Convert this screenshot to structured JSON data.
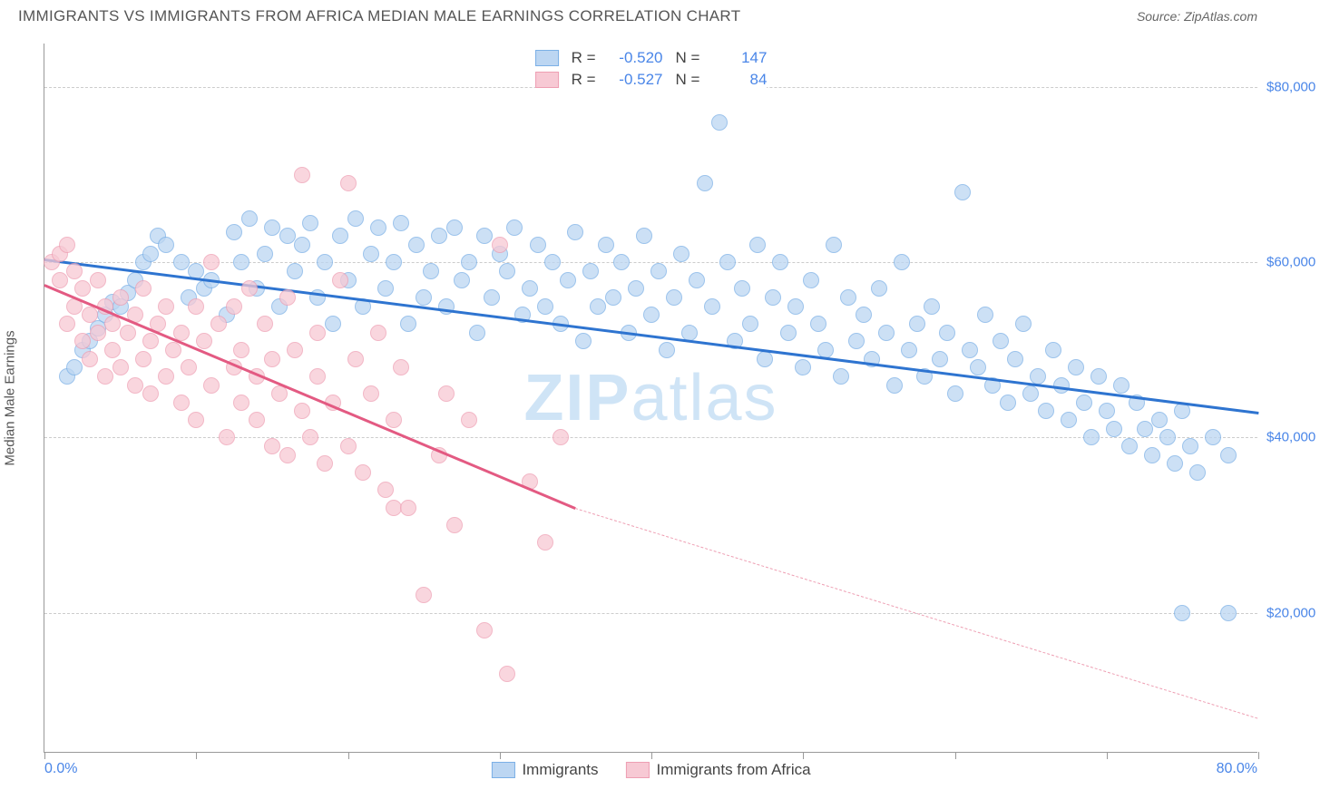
{
  "title": "IMMIGRANTS VS IMMIGRANTS FROM AFRICA MEDIAN MALE EARNINGS CORRELATION CHART",
  "source": "Source: ZipAtlas.com",
  "watermark": {
    "part1": "ZIP",
    "part2": "atlas",
    "color": "#cfe4f6"
  },
  "y_axis": {
    "label": "Median Male Earnings",
    "min": 4000,
    "max": 85000,
    "ticks": [
      20000,
      40000,
      60000,
      80000
    ],
    "tick_labels": [
      "$20,000",
      "$40,000",
      "$60,000",
      "$80,000"
    ],
    "label_color": "#4a86e8"
  },
  "x_axis": {
    "min": 0,
    "max": 80,
    "tick_positions": [
      0,
      10,
      20,
      30,
      40,
      50,
      60,
      70,
      80
    ],
    "min_label": "0.0%",
    "max_label": "80.0%",
    "label_color": "#4a86e8"
  },
  "series": [
    {
      "name": "Immigrants",
      "color_fill": "#bcd6f2",
      "color_stroke": "#7bb0e6",
      "trend_color": "#2e74d0",
      "R": "-0.520",
      "N": "147",
      "trend": {
        "x1": 0,
        "y1": 60500,
        "x2": 80,
        "y2": 43000
      },
      "dot_radius": 9,
      "points": [
        [
          1.5,
          47000
        ],
        [
          2,
          48000
        ],
        [
          2.5,
          50000
        ],
        [
          3,
          51000
        ],
        [
          3.5,
          52500
        ],
        [
          4,
          54000
        ],
        [
          4.5,
          55500
        ],
        [
          5,
          55000
        ],
        [
          5.5,
          56500
        ],
        [
          6,
          58000
        ],
        [
          6.5,
          60000
        ],
        [
          7,
          61000
        ],
        [
          7.5,
          63000
        ],
        [
          8,
          62000
        ],
        [
          9,
          60000
        ],
        [
          9.5,
          56000
        ],
        [
          10,
          59000
        ],
        [
          10.5,
          57000
        ],
        [
          11,
          58000
        ],
        [
          12,
          54000
        ],
        [
          12.5,
          63500
        ],
        [
          13,
          60000
        ],
        [
          13.5,
          65000
        ],
        [
          14,
          57000
        ],
        [
          14.5,
          61000
        ],
        [
          15,
          64000
        ],
        [
          15.5,
          55000
        ],
        [
          16,
          63000
        ],
        [
          16.5,
          59000
        ],
        [
          17,
          62000
        ],
        [
          17.5,
          64500
        ],
        [
          18,
          56000
        ],
        [
          18.5,
          60000
        ],
        [
          19,
          53000
        ],
        [
          19.5,
          63000
        ],
        [
          20,
          58000
        ],
        [
          20.5,
          65000
        ],
        [
          21,
          55000
        ],
        [
          21.5,
          61000
        ],
        [
          22,
          64000
        ],
        [
          22.5,
          57000
        ],
        [
          23,
          60000
        ],
        [
          23.5,
          64500
        ],
        [
          24,
          53000
        ],
        [
          24.5,
          62000
        ],
        [
          25,
          56000
        ],
        [
          25.5,
          59000
        ],
        [
          26,
          63000
        ],
        [
          26.5,
          55000
        ],
        [
          27,
          64000
        ],
        [
          27.5,
          58000
        ],
        [
          28,
          60000
        ],
        [
          28.5,
          52000
        ],
        [
          29,
          63000
        ],
        [
          29.5,
          56000
        ],
        [
          30,
          61000
        ],
        [
          30.5,
          59000
        ],
        [
          31,
          64000
        ],
        [
          31.5,
          54000
        ],
        [
          32,
          57000
        ],
        [
          32.5,
          62000
        ],
        [
          33,
          55000
        ],
        [
          33.5,
          60000
        ],
        [
          34,
          53000
        ],
        [
          34.5,
          58000
        ],
        [
          35,
          63500
        ],
        [
          35.5,
          51000
        ],
        [
          36,
          59000
        ],
        [
          36.5,
          55000
        ],
        [
          37,
          62000
        ],
        [
          37.5,
          56000
        ],
        [
          38,
          60000
        ],
        [
          38.5,
          52000
        ],
        [
          39,
          57000
        ],
        [
          39.5,
          63000
        ],
        [
          40,
          54000
        ],
        [
          40.5,
          59000
        ],
        [
          41,
          50000
        ],
        [
          41.5,
          56000
        ],
        [
          42,
          61000
        ],
        [
          42.5,
          52000
        ],
        [
          43,
          58000
        ],
        [
          43.5,
          69000
        ],
        [
          44,
          55000
        ],
        [
          44.5,
          76000
        ],
        [
          45,
          60000
        ],
        [
          45.5,
          51000
        ],
        [
          46,
          57000
        ],
        [
          46.5,
          53000
        ],
        [
          47,
          62000
        ],
        [
          47.5,
          49000
        ],
        [
          48,
          56000
        ],
        [
          48.5,
          60000
        ],
        [
          49,
          52000
        ],
        [
          49.5,
          55000
        ],
        [
          50,
          48000
        ],
        [
          50.5,
          58000
        ],
        [
          51,
          53000
        ],
        [
          51.5,
          50000
        ],
        [
          52,
          62000
        ],
        [
          52.5,
          47000
        ],
        [
          53,
          56000
        ],
        [
          53.5,
          51000
        ],
        [
          54,
          54000
        ],
        [
          54.5,
          49000
        ],
        [
          55,
          57000
        ],
        [
          55.5,
          52000
        ],
        [
          56,
          46000
        ],
        [
          56.5,
          60000
        ],
        [
          57,
          50000
        ],
        [
          57.5,
          53000
        ],
        [
          58,
          47000
        ],
        [
          58.5,
          55000
        ],
        [
          59,
          49000
        ],
        [
          59.5,
          52000
        ],
        [
          60,
          45000
        ],
        [
          60.5,
          68000
        ],
        [
          61,
          50000
        ],
        [
          61.5,
          48000
        ],
        [
          62,
          54000
        ],
        [
          62.5,
          46000
        ],
        [
          63,
          51000
        ],
        [
          63.5,
          44000
        ],
        [
          64,
          49000
        ],
        [
          64.5,
          53000
        ],
        [
          65,
          45000
        ],
        [
          65.5,
          47000
        ],
        [
          66,
          43000
        ],
        [
          66.5,
          50000
        ],
        [
          67,
          46000
        ],
        [
          67.5,
          42000
        ],
        [
          68,
          48000
        ],
        [
          68.5,
          44000
        ],
        [
          69,
          40000
        ],
        [
          69.5,
          47000
        ],
        [
          70,
          43000
        ],
        [
          70.5,
          41000
        ],
        [
          71,
          46000
        ],
        [
          71.5,
          39000
        ],
        [
          72,
          44000
        ],
        [
          72.5,
          41000
        ],
        [
          73,
          38000
        ],
        [
          73.5,
          42000
        ],
        [
          74,
          40000
        ],
        [
          74.5,
          37000
        ],
        [
          75,
          43000
        ],
        [
          75.5,
          39000
        ],
        [
          75,
          20000
        ],
        [
          78,
          20000
        ],
        [
          76,
          36000
        ],
        [
          77,
          40000
        ],
        [
          78,
          38000
        ]
      ]
    },
    {
      "name": "Immigrants from Africa",
      "color_fill": "#f7c9d4",
      "color_stroke": "#ee9fb3",
      "trend_color": "#e35a82",
      "R": "-0.527",
      "N": "84",
      "trend": {
        "x1": 0,
        "y1": 57500,
        "x2": 35,
        "y2": 32000
      },
      "trend_dashed": {
        "x1": 35,
        "y1": 32000,
        "x2": 80,
        "y2": 8000
      },
      "dot_radius": 9,
      "points": [
        [
          0.5,
          60000
        ],
        [
          1,
          61000
        ],
        [
          1,
          58000
        ],
        [
          1.5,
          53000
        ],
        [
          1.5,
          62000
        ],
        [
          2,
          55000
        ],
        [
          2,
          59000
        ],
        [
          2.5,
          51000
        ],
        [
          2.5,
          57000
        ],
        [
          3,
          54000
        ],
        [
          3,
          49000
        ],
        [
          3.5,
          58000
        ],
        [
          3.5,
          52000
        ],
        [
          4,
          55000
        ],
        [
          4,
          47000
        ],
        [
          4.5,
          53000
        ],
        [
          4.5,
          50000
        ],
        [
          5,
          56000
        ],
        [
          5,
          48000
        ],
        [
          5.5,
          52000
        ],
        [
          6,
          46000
        ],
        [
          6,
          54000
        ],
        [
          6.5,
          49000
        ],
        [
          6.5,
          57000
        ],
        [
          7,
          51000
        ],
        [
          7,
          45000
        ],
        [
          7.5,
          53000
        ],
        [
          8,
          47000
        ],
        [
          8,
          55000
        ],
        [
          8.5,
          50000
        ],
        [
          9,
          44000
        ],
        [
          9,
          52000
        ],
        [
          9.5,
          48000
        ],
        [
          10,
          55000
        ],
        [
          10,
          42000
        ],
        [
          10.5,
          51000
        ],
        [
          11,
          46000
        ],
        [
          11,
          60000
        ],
        [
          11.5,
          53000
        ],
        [
          12,
          40000
        ],
        [
          12.5,
          48000
        ],
        [
          12.5,
          55000
        ],
        [
          13,
          44000
        ],
        [
          13,
          50000
        ],
        [
          13.5,
          57000
        ],
        [
          14,
          42000
        ],
        [
          14,
          47000
        ],
        [
          14.5,
          53000
        ],
        [
          15,
          39000
        ],
        [
          15,
          49000
        ],
        [
          15.5,
          45000
        ],
        [
          16,
          56000
        ],
        [
          16,
          38000
        ],
        [
          16.5,
          50000
        ],
        [
          17,
          43000
        ],
        [
          17,
          70000
        ],
        [
          17.5,
          40000
        ],
        [
          18,
          47000
        ],
        [
          18,
          52000
        ],
        [
          18.5,
          37000
        ],
        [
          19,
          44000
        ],
        [
          19.5,
          58000
        ],
        [
          20,
          69000
        ],
        [
          20,
          39000
        ],
        [
          20.5,
          49000
        ],
        [
          21,
          36000
        ],
        [
          21.5,
          45000
        ],
        [
          22,
          52000
        ],
        [
          22.5,
          34000
        ],
        [
          23,
          42000
        ],
        [
          23,
          32000
        ],
        [
          23.5,
          48000
        ],
        [
          24,
          32000
        ],
        [
          25,
          22000
        ],
        [
          26,
          38000
        ],
        [
          26.5,
          45000
        ],
        [
          27,
          30000
        ],
        [
          28,
          42000
        ],
        [
          29,
          18000
        ],
        [
          30,
          62000
        ],
        [
          30.5,
          13000
        ],
        [
          32,
          35000
        ],
        [
          33,
          28000
        ],
        [
          34,
          40000
        ]
      ]
    }
  ],
  "legend": {
    "items": [
      {
        "label": "Immigrants"
      },
      {
        "label": "Immigrants from Africa"
      }
    ]
  }
}
